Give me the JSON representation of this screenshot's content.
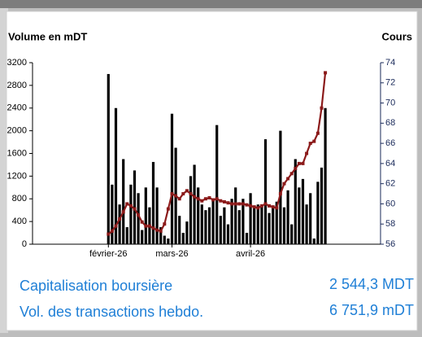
{
  "chart_data": {
    "type": "combo",
    "y_label": "Volume en mDT",
    "y2_label": "Cours",
    "categories": [
      "février-26",
      null,
      null,
      null,
      null,
      null,
      null,
      null,
      null,
      null,
      null,
      null,
      null,
      null,
      null,
      null,
      null,
      "mars-26",
      null,
      null,
      null,
      null,
      null,
      null,
      null,
      null,
      null,
      null,
      null,
      null,
      null,
      null,
      null,
      null,
      null,
      null,
      null,
      null,
      "avril-26",
      null,
      null,
      null,
      null,
      null,
      null,
      null,
      null,
      null,
      null,
      null,
      null,
      null,
      null,
      null,
      null,
      null,
      null,
      null,
      null
    ],
    "series": [
      {
        "name": "Volume",
        "type": "bar",
        "color": "#000000",
        "values": [
          3000,
          1050,
          2400,
          700,
          1500,
          300,
          1050,
          1300,
          900,
          250,
          1000,
          650,
          1450,
          1000,
          300,
          150,
          100,
          2300,
          1700,
          500,
          200,
          400,
          1200,
          1400,
          1000,
          700,
          600,
          650,
          800,
          2100,
          500,
          650,
          350,
          800,
          1000,
          600,
          800,
          200,
          900,
          650,
          700,
          650,
          1850,
          550,
          650,
          750,
          2000,
          650,
          950,
          350,
          1500,
          1000,
          1150,
          700,
          900,
          100,
          1100,
          1350,
          2400
        ]
      },
      {
        "name": "Cours",
        "type": "line",
        "axis": "y2",
        "color": "#8b1a1a",
        "values": [
          57,
          57.3,
          57.8,
          58.5,
          59.2,
          60,
          59.8,
          59.5,
          58.9,
          58.2,
          57.8,
          57.8,
          57.6,
          57.4,
          57.3,
          58,
          59.5,
          61,
          60.8,
          60.5,
          61,
          61.3,
          61,
          60.7,
          60.5,
          60.3,
          60.5,
          60.6,
          60.4,
          60.5,
          60.3,
          60.2,
          60.1,
          60,
          60,
          60,
          60,
          59.9,
          59.8,
          59.7,
          59.6,
          59.8,
          60,
          59.8,
          59.7,
          59.6,
          61,
          62,
          62.5,
          63,
          63.5,
          64,
          64,
          65,
          66,
          66.2,
          67,
          69.5,
          73
        ]
      }
    ],
    "ylim": [
      0,
      3200
    ],
    "yticks": [
      0,
      400,
      800,
      1200,
      1600,
      2000,
      2400,
      2800,
      3200
    ],
    "y2lim": [
      56,
      74
    ],
    "y2ticks": [
      56,
      58,
      60,
      62,
      64,
      66,
      68,
      70,
      72,
      74
    ]
  },
  "info": {
    "rows": [
      [
        "Capitalisation boursière",
        "2 544,3 MDT"
      ],
      [
        "Vol. des transactions hebdo.",
        "6 751,9 mDT"
      ]
    ]
  }
}
